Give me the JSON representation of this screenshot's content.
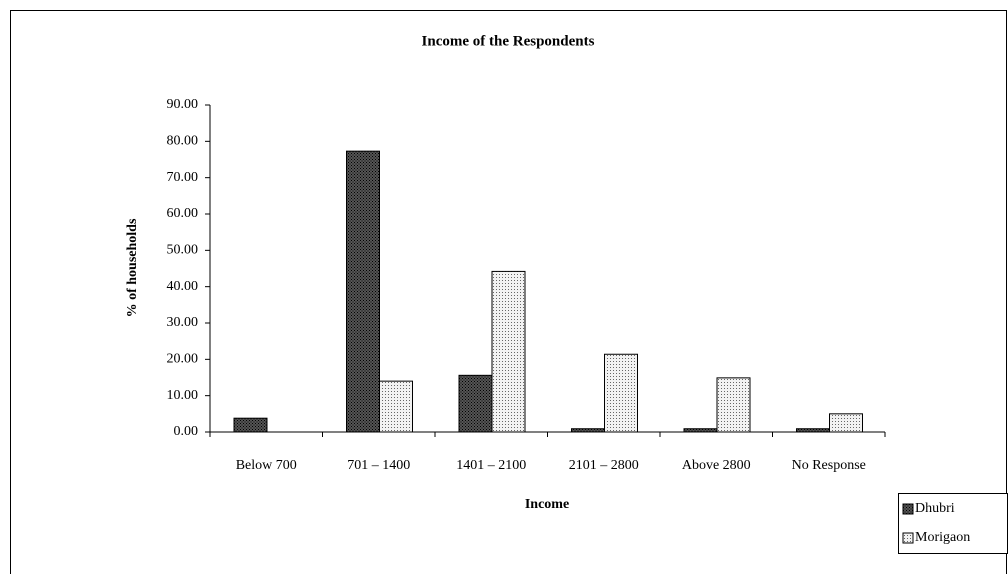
{
  "chart_data": {
    "type": "bar",
    "title": "Income of the Respondents",
    "x_label": "Income",
    "y_label": "% of households",
    "categories": [
      "Below 700",
      "701 – 1400",
      "1401 – 2100",
      "2101 – 2800",
      "Above 2800",
      "No Response"
    ],
    "series": [
      {
        "name": "Dhubri",
        "color": "#555555",
        "values": [
          3.8,
          77.3,
          15.6,
          0.9,
          0.9,
          0.9
        ]
      },
      {
        "name": "Morigaon",
        "color": "#f2f2f2",
        "values": [
          0,
          14.0,
          44.2,
          21.4,
          14.9,
          5.0
        ]
      }
    ],
    "ylim": [
      0,
      90
    ],
    "yticks": [
      {
        "value": 0,
        "label": "0.00"
      },
      {
        "value": 10,
        "label": "10.00"
      },
      {
        "value": 20,
        "label": "20.00"
      },
      {
        "value": 30,
        "label": "30.00"
      },
      {
        "value": 40,
        "label": "40.00"
      },
      {
        "value": 50,
        "label": "50.00"
      },
      {
        "value": 60,
        "label": "60.00"
      },
      {
        "value": 70,
        "label": "70.00"
      },
      {
        "value": 80,
        "label": "80.00"
      },
      {
        "value": 90,
        "label": "90.00"
      }
    ],
    "legend": "bottom-right"
  }
}
